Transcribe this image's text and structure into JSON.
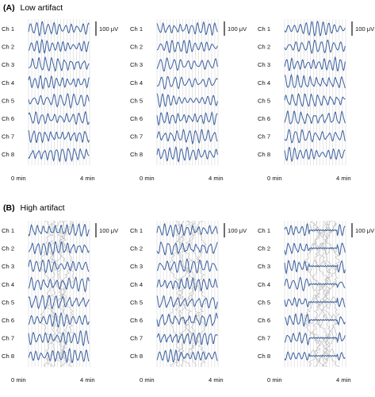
{
  "colors": {
    "trace": "#3a5f9e",
    "artifact_trace": "#b9b9b9",
    "grid": "#c8c8c8",
    "text": "#111111"
  },
  "chart_data": {
    "type": "line",
    "panels": [
      {
        "letter": "(A)",
        "title": "Low artifact",
        "columns": 3,
        "artifact": false,
        "channels": [
          "Ch 1",
          "Ch 2",
          "Ch 3",
          "Ch 4",
          "Ch 5",
          "Ch 6",
          "Ch 7",
          "Ch 8"
        ],
        "scale_bar": "100 μV",
        "x_start_label": "0 min",
        "x_end_label": "4 min"
      },
      {
        "letter": "(B)",
        "title": "High artifact",
        "columns": 3,
        "artifact": true,
        "channels": [
          "Ch 1",
          "Ch 2",
          "Ch 3",
          "Ch 4",
          "Ch 5",
          "Ch 6",
          "Ch 7",
          "Ch 8"
        ],
        "scale_bar": "100 μV",
        "x_start_label": "0 min",
        "x_end_label": "4 min"
      }
    ],
    "x_range_min": [
      0,
      4
    ],
    "grid": true,
    "scale_bar_uV": 100
  }
}
